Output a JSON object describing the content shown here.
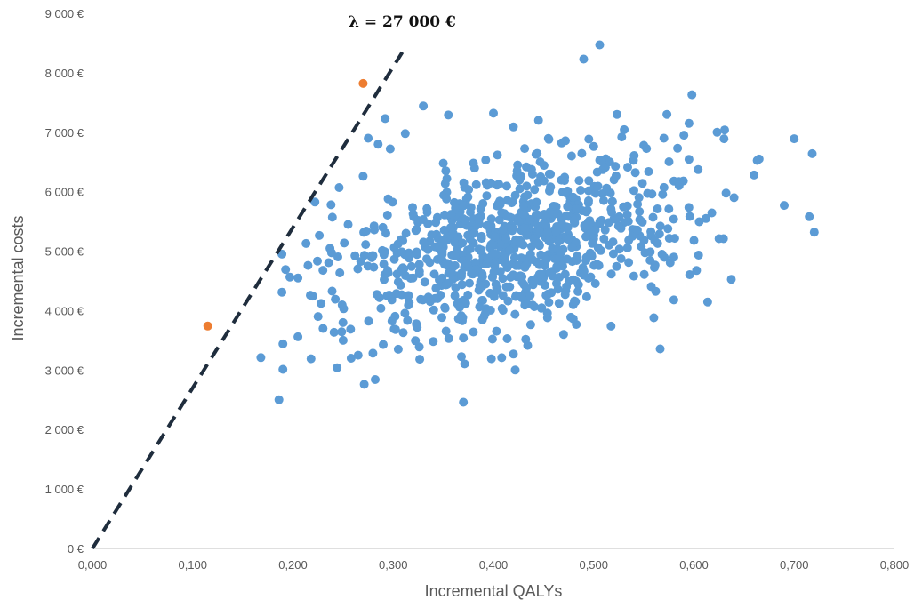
{
  "chart_data": {
    "type": "scatter",
    "title": "",
    "xlabel": "Incremental QALYs",
    "ylabel": "Incremental costs",
    "xlim": [
      0,
      0.8
    ],
    "ylim": [
      0,
      9000
    ],
    "grid": false,
    "x_ticks": [
      "0,000",
      "0,100",
      "0,200",
      "0,300",
      "0,400",
      "0,500",
      "0,600",
      "0,700",
      "0,800"
    ],
    "y_ticks": [
      "0 €",
      "1 000 €",
      "2 000 €",
      "3 000 €",
      "4 000 €",
      "5 000 €",
      "6 000 €",
      "7 000 €",
      "8 000 €",
      "9 000 €"
    ],
    "threshold": {
      "label": "λ = 27 000 €",
      "slope": 27000,
      "x_end": 0.31,
      "color": "#1f2d3d"
    },
    "series": [
      {
        "color": "#5b9bd5",
        "points": [
          [
            0.186,
            2500
          ],
          [
            0.37,
            2460
          ],
          [
            0.168,
            3210
          ],
          [
            0.218,
            3190
          ],
          [
            0.244,
            3040
          ],
          [
            0.271,
            2760
          ],
          [
            0.282,
            2840
          ],
          [
            0.506,
            8470
          ],
          [
            0.49,
            8230
          ],
          [
            0.598,
            7630
          ],
          [
            0.595,
            7150
          ],
          [
            0.63,
            6890
          ],
          [
            0.665,
            6550
          ],
          [
            0.718,
            6640
          ],
          [
            0.72,
            5320
          ],
          [
            0.715,
            5580
          ],
          [
            0.69,
            5770
          ],
          [
            0.66,
            6280
          ],
          [
            0.64,
            5900
          ],
          [
            0.612,
            5550
          ],
          [
            0.625,
            5210
          ],
          [
            0.33,
            7440
          ],
          [
            0.4,
            7320
          ],
          [
            0.355,
            7290
          ],
          [
            0.445,
            7200
          ],
          [
            0.292,
            7230
          ],
          [
            0.42,
            7090
          ],
          [
            0.35,
            6480
          ],
          [
            0.47,
            3600
          ],
          [
            0.42,
            3270
          ],
          [
            0.398,
            3190
          ],
          [
            0.37,
            3540
          ],
          [
            0.34,
            3480
          ],
          [
            0.305,
            3350
          ],
          [
            0.258,
            3200
          ],
          [
            0.19,
            3440
          ],
          [
            0.205,
            3560
          ],
          [
            0.23,
            3700
          ],
          [
            0.25,
            3500
          ],
          [
            0.265,
            3250
          ],
          [
            0.29,
            3430
          ],
          [
            0.31,
            3630
          ],
          [
            0.189,
            4310
          ],
          [
            0.189,
            4950
          ],
          [
            0.215,
            4760
          ],
          [
            0.213,
            5130
          ],
          [
            0.205,
            4550
          ],
          [
            0.228,
            4120
          ],
          [
            0.225,
            3900
          ],
          [
            0.238,
            5780
          ],
          [
            0.255,
            5450
          ],
          [
            0.246,
            6070
          ],
          [
            0.27,
            6260
          ],
          [
            0.285,
            6800
          ],
          [
            0.275,
            6900
          ],
          [
            0.297,
            6720
          ],
          [
            0.56,
            3880
          ],
          [
            0.58,
            4180
          ],
          [
            0.54,
            4580
          ],
          [
            0.58,
            4900
          ],
          [
            0.6,
            5180
          ],
          [
            0.575,
            5710
          ],
          [
            0.585,
            6170
          ],
          [
            0.55,
            6780
          ],
          [
            0.57,
            6900
          ],
          [
            0.59,
            6950
          ],
          [
            0.5,
            6760
          ],
          [
            0.528,
            6920
          ],
          [
            0.468,
            6820
          ],
          [
            0.478,
            6600
          ]
        ],
        "cluster": {
          "n": 820,
          "mean_x": 0.42,
          "mean_y": 5100,
          "sd_x": 0.085,
          "sd_y": 720,
          "corr": 0.38,
          "seed": 17
        }
      },
      {
        "color": "#ed7d31",
        "points": [
          [
            0.115,
            3740
          ],
          [
            0.27,
            7820
          ]
        ]
      }
    ]
  }
}
